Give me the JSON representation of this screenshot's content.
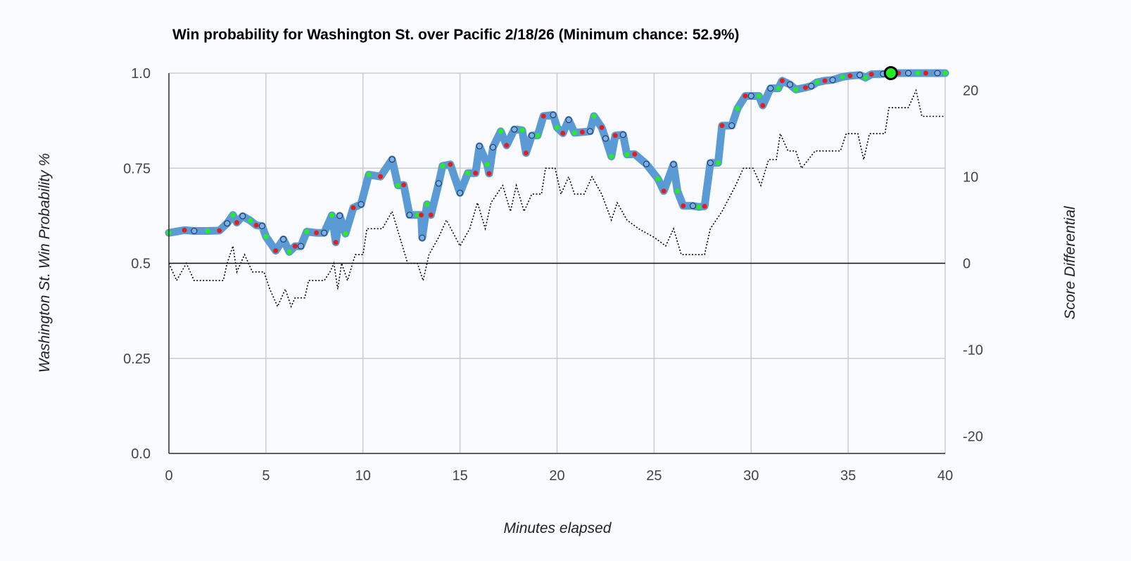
{
  "chart_data": {
    "type": "line",
    "title": "Win probability for Washington St. over Pacific 2/18/26 (Minimum chance: 52.9%)",
    "xlabel": "Minutes elapsed",
    "ylabel": "Washington St. Win Probability %",
    "y2label": "Score Differential",
    "xlim": [
      0,
      40
    ],
    "ylim": [
      0,
      1
    ],
    "y2lim": [
      -22,
      22
    ],
    "x_ticks": [
      "0",
      "5",
      "10",
      "15",
      "20",
      "25",
      "30",
      "35",
      "40"
    ],
    "y_ticks": [
      "0.0",
      "0.25",
      "0.5",
      "0.75",
      "1.0"
    ],
    "y2_ticks": [
      "-20",
      "-10",
      "0",
      "10",
      "20"
    ],
    "grid": true,
    "colors": {
      "win_prob_line": "#5b9bd5",
      "score_diff_line": "#000000",
      "made_shot_marker": "#22ee22",
      "turnover_marker": "#e02020",
      "other_marker": "#7ab0e8",
      "highlight_marker": "#22ee22"
    },
    "series": [
      {
        "key": "win_prob",
        "axis": "left",
        "points": [
          [
            0,
            0.58
          ],
          [
            0.8,
            0.587
          ],
          [
            1.3,
            0.585
          ],
          [
            2.0,
            0.585
          ],
          [
            2.6,
            0.586
          ],
          [
            3.0,
            0.605
          ],
          [
            3.3,
            0.627
          ],
          [
            3.5,
            0.607
          ],
          [
            3.8,
            0.624
          ],
          [
            4.2,
            0.612
          ],
          [
            4.5,
            0.6
          ],
          [
            4.8,
            0.598
          ],
          [
            5.0,
            0.57
          ],
          [
            5.5,
            0.533
          ],
          [
            5.9,
            0.563
          ],
          [
            6.2,
            0.53
          ],
          [
            6.5,
            0.545
          ],
          [
            6.8,
            0.545
          ],
          [
            7.1,
            0.583
          ],
          [
            7.6,
            0.58
          ],
          [
            8.0,
            0.58
          ],
          [
            8.4,
            0.626
          ],
          [
            8.6,
            0.555
          ],
          [
            8.8,
            0.625
          ],
          [
            9.1,
            0.578
          ],
          [
            9.5,
            0.646
          ],
          [
            9.9,
            0.655
          ],
          [
            10.3,
            0.733
          ],
          [
            10.9,
            0.728
          ],
          [
            11.5,
            0.773
          ],
          [
            11.8,
            0.705
          ],
          [
            12.1,
            0.706
          ],
          [
            12.4,
            0.627
          ],
          [
            12.8,
            0.627
          ],
          [
            13.0,
            0.627
          ],
          [
            13.05,
            0.567
          ],
          [
            13.3,
            0.655
          ],
          [
            13.5,
            0.627
          ],
          [
            13.9,
            0.71
          ],
          [
            14.1,
            0.756
          ],
          [
            14.5,
            0.76
          ],
          [
            15.0,
            0.685
          ],
          [
            15.4,
            0.737
          ],
          [
            15.8,
            0.737
          ],
          [
            16.0,
            0.808
          ],
          [
            16.4,
            0.76
          ],
          [
            16.5,
            0.736
          ],
          [
            16.7,
            0.805
          ],
          [
            17.1,
            0.847
          ],
          [
            17.4,
            0.81
          ],
          [
            17.8,
            0.852
          ],
          [
            18.2,
            0.85
          ],
          [
            18.4,
            0.79
          ],
          [
            18.7,
            0.836
          ],
          [
            19.0,
            0.836
          ],
          [
            19.3,
            0.887
          ],
          [
            19.8,
            0.89
          ],
          [
            20.0,
            0.857
          ],
          [
            20.3,
            0.842
          ],
          [
            20.6,
            0.877
          ],
          [
            20.9,
            0.843
          ],
          [
            21.3,
            0.845
          ],
          [
            21.7,
            0.847
          ],
          [
            21.9,
            0.887
          ],
          [
            22.3,
            0.857
          ],
          [
            22.5,
            0.828
          ],
          [
            22.8,
            0.781
          ],
          [
            23.0,
            0.836
          ],
          [
            23.4,
            0.838
          ],
          [
            23.6,
            0.786
          ],
          [
            24.0,
            0.787
          ],
          [
            24.6,
            0.761
          ],
          [
            25.2,
            0.722
          ],
          [
            25.5,
            0.69
          ],
          [
            26.0,
            0.76
          ],
          [
            26.2,
            0.69
          ],
          [
            26.5,
            0.651
          ],
          [
            27.0,
            0.651
          ],
          [
            27.3,
            0.648
          ],
          [
            27.6,
            0.65
          ],
          [
            27.9,
            0.764
          ],
          [
            28.3,
            0.764
          ],
          [
            28.5,
            0.862
          ],
          [
            29.0,
            0.862
          ],
          [
            29.3,
            0.907
          ],
          [
            29.7,
            0.94
          ],
          [
            30.0,
            0.94
          ],
          [
            30.4,
            0.94
          ],
          [
            30.6,
            0.915
          ],
          [
            31.0,
            0.96
          ],
          [
            31.4,
            0.96
          ],
          [
            31.6,
            0.98
          ],
          [
            32.0,
            0.97
          ],
          [
            32.3,
            0.957
          ],
          [
            32.8,
            0.962
          ],
          [
            33.1,
            0.966
          ],
          [
            33.4,
            0.976
          ],
          [
            33.8,
            0.98
          ],
          [
            34.2,
            0.982
          ],
          [
            34.7,
            0.99
          ],
          [
            35.1,
            0.993
          ],
          [
            35.6,
            0.995
          ],
          [
            35.9,
            0.988
          ],
          [
            36.2,
            0.997
          ],
          [
            36.8,
            0.998
          ],
          [
            37.2,
            1.0
          ],
          [
            37.6,
            1.0
          ],
          [
            38.1,
            1.0
          ],
          [
            38.6,
            1.0
          ],
          [
            39.0,
            1.0
          ],
          [
            39.6,
            1.0
          ],
          [
            40.0,
            1.0
          ]
        ]
      },
      {
        "key": "score_diff",
        "axis": "right",
        "points": [
          [
            0,
            0
          ],
          [
            0.4,
            -2
          ],
          [
            0.9,
            0
          ],
          [
            1.3,
            -2
          ],
          [
            2.0,
            -2
          ],
          [
            2.8,
            -2
          ],
          [
            3.0,
            0
          ],
          [
            3.3,
            2
          ],
          [
            3.5,
            -1
          ],
          [
            3.9,
            1
          ],
          [
            4.3,
            -1
          ],
          [
            4.9,
            -1
          ],
          [
            5.2,
            -3
          ],
          [
            5.6,
            -5
          ],
          [
            6.0,
            -3
          ],
          [
            6.3,
            -5
          ],
          [
            6.5,
            -4
          ],
          [
            7.0,
            -4
          ],
          [
            7.2,
            -2
          ],
          [
            8.0,
            -2
          ],
          [
            8.3,
            -1
          ],
          [
            8.5,
            0
          ],
          [
            8.7,
            -3
          ],
          [
            8.9,
            0
          ],
          [
            9.2,
            -2
          ],
          [
            9.6,
            1
          ],
          [
            10.0,
            1
          ],
          [
            10.2,
            4
          ],
          [
            11.0,
            4
          ],
          [
            11.5,
            6
          ],
          [
            11.9,
            3
          ],
          [
            12.3,
            0
          ],
          [
            12.8,
            0
          ],
          [
            13.1,
            -2
          ],
          [
            13.4,
            1
          ],
          [
            13.9,
            3
          ],
          [
            14.3,
            5
          ],
          [
            15.0,
            2
          ],
          [
            15.5,
            4
          ],
          [
            15.9,
            7
          ],
          [
            16.3,
            4
          ],
          [
            16.6,
            7
          ],
          [
            17.2,
            9
          ],
          [
            17.6,
            6
          ],
          [
            17.9,
            9
          ],
          [
            18.3,
            6
          ],
          [
            18.7,
            8
          ],
          [
            19.2,
            8
          ],
          [
            19.4,
            11
          ],
          [
            19.9,
            11
          ],
          [
            20.2,
            8
          ],
          [
            20.6,
            10
          ],
          [
            20.9,
            8
          ],
          [
            21.4,
            8
          ],
          [
            21.8,
            10
          ],
          [
            22.3,
            8
          ],
          [
            22.8,
            5
          ],
          [
            23.1,
            7
          ],
          [
            23.6,
            5
          ],
          [
            24.2,
            4
          ],
          [
            25.0,
            3
          ],
          [
            25.6,
            2
          ],
          [
            26.0,
            4
          ],
          [
            26.4,
            1
          ],
          [
            27.0,
            1
          ],
          [
            27.6,
            1
          ],
          [
            27.9,
            4
          ],
          [
            28.5,
            6
          ],
          [
            29.2,
            9
          ],
          [
            29.6,
            11
          ],
          [
            30.1,
            11
          ],
          [
            30.5,
            9
          ],
          [
            30.9,
            12
          ],
          [
            31.3,
            12
          ],
          [
            31.5,
            15
          ],
          [
            31.9,
            13
          ],
          [
            32.3,
            13
          ],
          [
            32.6,
            11
          ],
          [
            33.3,
            13
          ],
          [
            34.0,
            13
          ],
          [
            34.6,
            13
          ],
          [
            34.9,
            15
          ],
          [
            35.5,
            15
          ],
          [
            35.8,
            12
          ],
          [
            36.1,
            15
          ],
          [
            36.9,
            15
          ],
          [
            37.1,
            18
          ],
          [
            38.1,
            18
          ],
          [
            38.5,
            20
          ],
          [
            38.8,
            17
          ],
          [
            39.4,
            17
          ],
          [
            40.0,
            17
          ]
        ]
      }
    ],
    "highlight_point": {
      "x": 37.2,
      "y": 1.0
    }
  }
}
